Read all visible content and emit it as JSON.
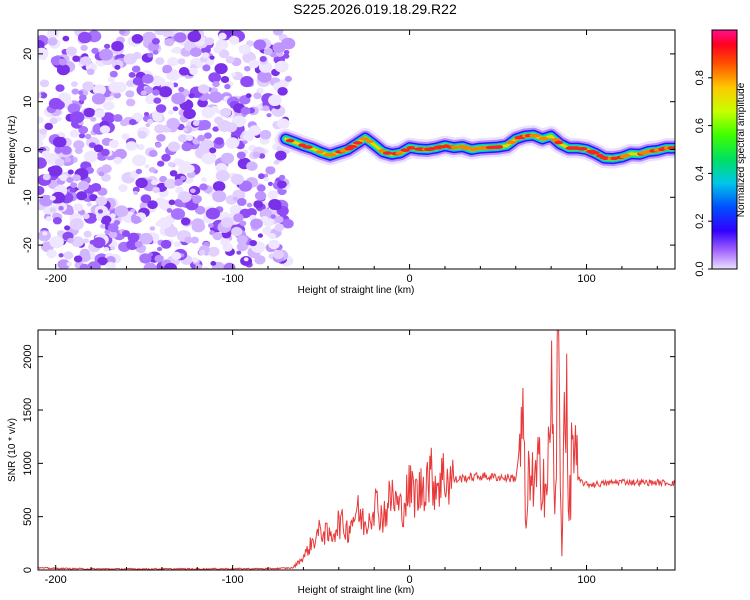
{
  "title": "S225.2026.019.18.29.R22",
  "chart_data": [
    {
      "type": "heatmap",
      "xlabel": "Height of straight line (km)",
      "ylabel": "Frequency (Hz)",
      "xlim": [
        -210,
        150
      ],
      "ylim": [
        -25,
        25
      ],
      "x_ticks": [
        "-200",
        "-100",
        "0",
        "100"
      ],
      "x_tick_values": [
        -200,
        -100,
        0,
        100
      ],
      "y_ticks": [
        "-20",
        "-10",
        "0",
        "10",
        "20"
      ],
      "y_tick_values": [
        -20,
        -10,
        0,
        10,
        20
      ],
      "noise_region_x": [
        -210,
        -68
      ],
      "ridge": {
        "x": [
          -70,
          -65,
          -60,
          -55,
          -50,
          -45,
          -40,
          -35,
          -30,
          -25,
          -20,
          -15,
          -10,
          -5,
          0,
          5,
          10,
          15,
          20,
          25,
          30,
          35,
          40,
          45,
          50,
          55,
          60,
          65,
          70,
          75,
          80,
          85,
          90,
          95,
          100,
          105,
          110,
          115,
          120,
          125,
          130,
          135,
          140,
          145,
          150
        ],
        "frequency": [
          2.2,
          1.5,
          0.8,
          0.2,
          -0.6,
          -1.2,
          -0.6,
          0.0,
          1.2,
          2.4,
          1.0,
          -0.5,
          -1.0,
          -0.7,
          0.4,
          0.1,
          0.0,
          0.3,
          0.8,
          0.4,
          0.6,
          0.0,
          0.3,
          0.4,
          0.5,
          0.8,
          2.2,
          2.8,
          3.0,
          2.2,
          2.8,
          1.2,
          0.3,
          0.3,
          0.0,
          -0.8,
          -1.8,
          -1.9,
          -1.6,
          -0.9,
          -1.0,
          -0.4,
          -0.2,
          0.3,
          0.3
        ]
      },
      "colorbar": {
        "label": "Normalized spectral amplitude",
        "range": [
          0.0,
          1.0
        ],
        "ticks": [
          "0.0",
          "0.2",
          "0.4",
          "0.6",
          "0.8"
        ],
        "tick_values": [
          0.0,
          0.2,
          0.4,
          0.6,
          0.8
        ]
      }
    },
    {
      "type": "line",
      "xlabel": "Height of straight line (km)",
      "ylabel": "SNR (10 * v/v)",
      "xlim": [
        -210,
        150
      ],
      "ylim": [
        0,
        2250
      ],
      "x_ticks": [
        "-200",
        "-100",
        "0",
        "100"
      ],
      "x_tick_values": [
        -200,
        -100,
        0,
        100
      ],
      "y_ticks": [
        "0",
        "500",
        "1000",
        "1500",
        "2000"
      ],
      "y_tick_values": [
        0,
        500,
        1000,
        1500,
        2000
      ],
      "color": "#e8393a",
      "series": [
        {
          "name": "SNR",
          "x": [
            -210,
            -200,
            -180,
            -150,
            -120,
            -100,
            -80,
            -66,
            -60,
            -55,
            -50,
            -45,
            -40,
            -35,
            -30,
            -25,
            -20,
            -15,
            -10,
            -5,
            0,
            5,
            10,
            15,
            20,
            25,
            30,
            40,
            50,
            60,
            64,
            66,
            68,
            70,
            72,
            75,
            78,
            80,
            82,
            84,
            86,
            88,
            90,
            92,
            95,
            100,
            110,
            120,
            130,
            140,
            150
          ],
          "values": [
            20,
            15,
            10,
            10,
            10,
            12,
            12,
            20,
            120,
            260,
            380,
            300,
            450,
            380,
            560,
            420,
            640,
            500,
            700,
            560,
            760,
            700,
            900,
            820,
            880,
            840,
            860,
            880,
            870,
            860,
            1350,
            300,
            1100,
            700,
            850,
            1000,
            700,
            1900,
            400,
            2210,
            100,
            2100,
            350,
            1300,
            850,
            800,
            810,
            830,
            820,
            820,
            815
          ]
        }
      ]
    }
  ]
}
